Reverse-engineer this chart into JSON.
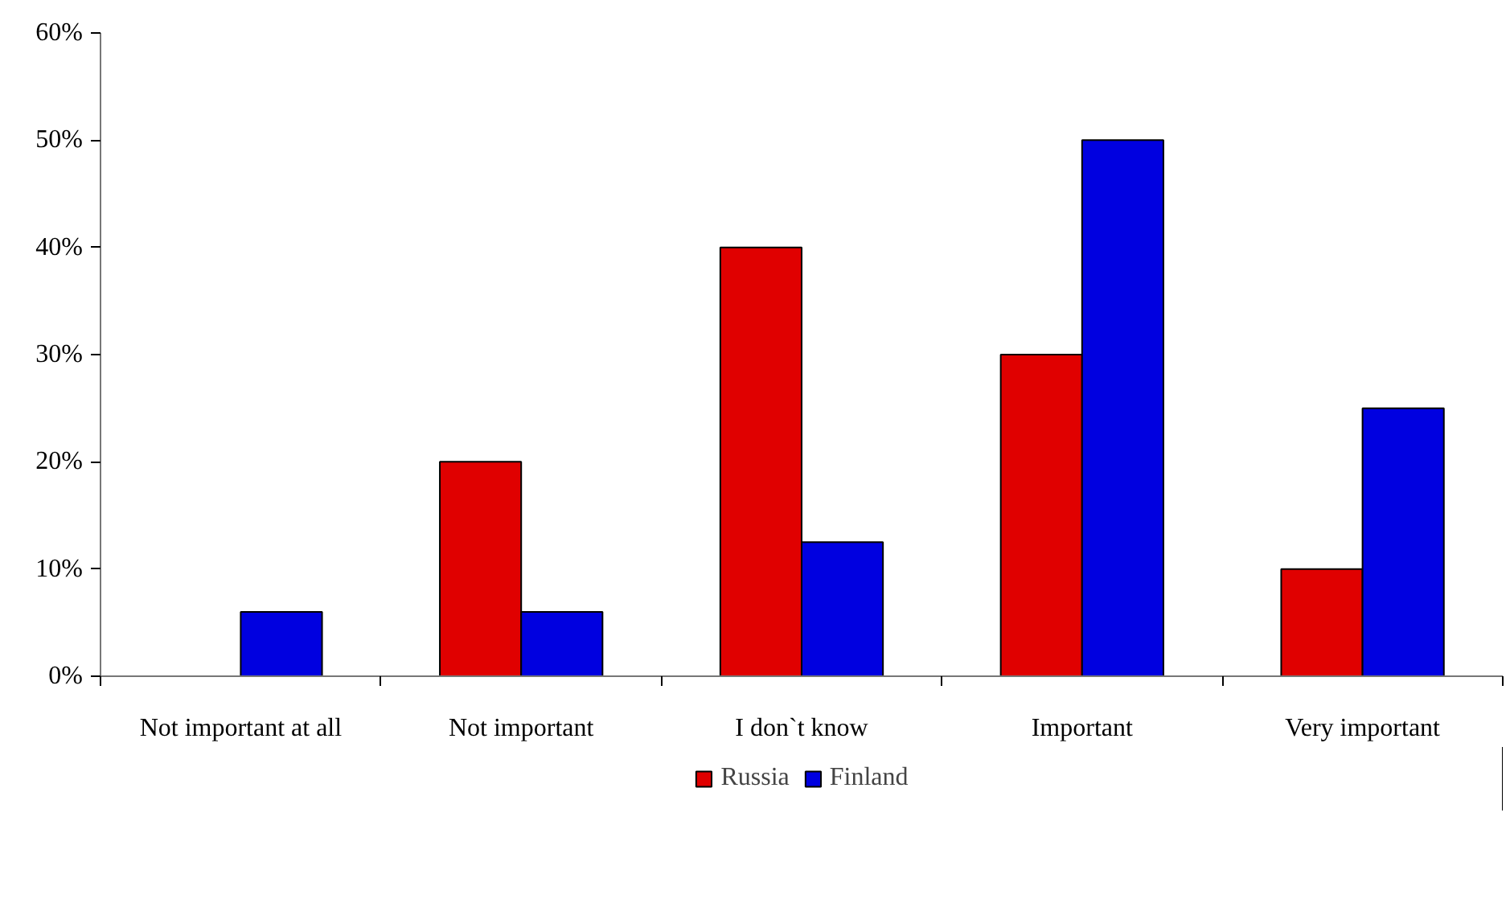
{
  "chart_data": {
    "type": "bar",
    "categories": [
      "Not important at all",
      "Not important",
      "I don`t know",
      "Important",
      "Very important"
    ],
    "series": [
      {
        "name": "Russia",
        "color": "#e00000",
        "values": [
          null,
          20,
          40,
          30,
          10
        ]
      },
      {
        "name": "Finland",
        "color": "#0000e0",
        "values": [
          6,
          6,
          12.5,
          50,
          25
        ]
      }
    ],
    "ylim": [
      0,
      60
    ],
    "yticks": [
      {
        "value": 0,
        "label": "0%"
      },
      {
        "value": 10,
        "label": "10%"
      },
      {
        "value": 20,
        "label": "20%"
      },
      {
        "value": 30,
        "label": "30%"
      },
      {
        "value": 40,
        "label": "40%"
      },
      {
        "value": 50,
        "label": "50%"
      },
      {
        "value": 60,
        "label": "60%"
      }
    ],
    "grid": false,
    "legend": "bottom"
  }
}
